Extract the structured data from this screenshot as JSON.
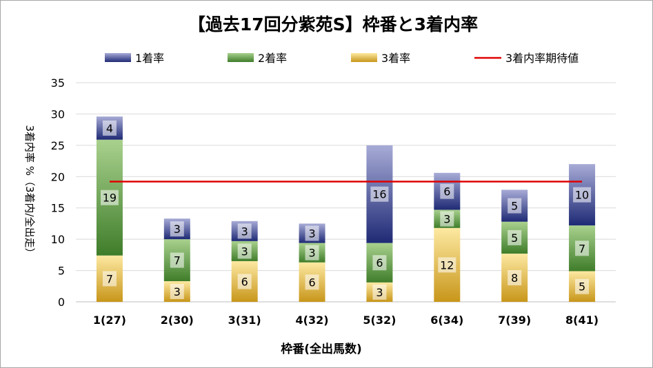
{
  "chart_data": {
    "type": "bar",
    "stacked": true,
    "title": "【過去17回分紫苑S】枠番と3着内率",
    "xlabel": "枠番(全出馬数)",
    "ylabel": "3着内率 %（3着内/全出走）",
    "ylim": [
      0,
      35
    ],
    "yticks": [
      0,
      5,
      10,
      15,
      20,
      25,
      30,
      35
    ],
    "grid": true,
    "legend_position": "top",
    "categories": [
      "1(27)",
      "2(30)",
      "3(31)",
      "4(32)",
      "5(32)",
      "6(34)",
      "7(39)",
      "8(41)"
    ],
    "series": [
      {
        "name": "3着率",
        "values": [
          7.4,
          3.3,
          6.5,
          6.3,
          3.1,
          11.8,
          7.7,
          4.9
        ],
        "labels": [
          "7",
          "3",
          "6",
          "6",
          "3",
          "12",
          "8",
          "5"
        ],
        "color": "#d9a520"
      },
      {
        "name": "2着率",
        "values": [
          18.5,
          6.7,
          3.2,
          3.1,
          6.3,
          2.9,
          5.1,
          7.3
        ],
        "labels": [
          "19",
          "7",
          "3",
          "3",
          "6",
          "3",
          "5",
          "7"
        ],
        "color": "#5b9a3a"
      },
      {
        "name": "1着率",
        "values": [
          3.7,
          3.3,
          3.2,
          3.1,
          15.6,
          5.9,
          5.1,
          9.8
        ],
        "labels": [
          "4",
          "3",
          "3",
          "3",
          "16",
          "6",
          "5",
          "10"
        ],
        "color": "#2e3a84"
      }
    ],
    "reference_line": {
      "name": "3着内率期待値",
      "value": 19.2,
      "color": "#e00000"
    }
  }
}
